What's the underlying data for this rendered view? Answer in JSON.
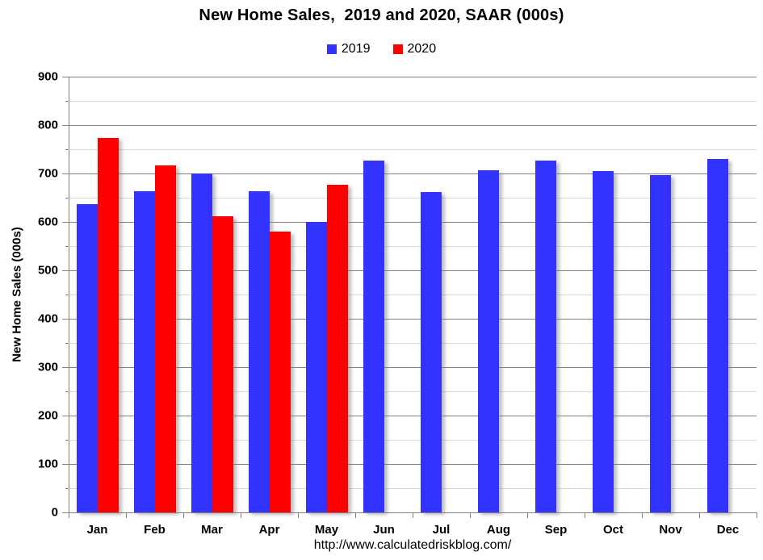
{
  "title": "New Home Sales,  2019 and 2020, SAAR (000s)",
  "legend": {
    "items": [
      {
        "label": "2019",
        "color": "#3333FF"
      },
      {
        "label": "2020",
        "color": "#FF0000"
      }
    ]
  },
  "footer": {
    "url": "http://www.calculatedriskblog.com/"
  },
  "colors": {
    "bar_2019": "#3333FF",
    "bar_2020": "#FF0000",
    "major_gridline": "#808080",
    "minor_gridline": "#D9D9D9",
    "axis": "#808080",
    "text": "#000000"
  },
  "chart_data": {
    "type": "bar",
    "title": "New Home Sales,  2019 and 2020, SAAR (000s)",
    "xlabel": "",
    "ylabel": "New Home Sales (000s)",
    "ylim": [
      0,
      900
    ],
    "ytick_step": 100,
    "minor_grid_step": 50,
    "grid": true,
    "legend_position": "top-center",
    "categories": [
      "Jan",
      "Feb",
      "Mar",
      "Apr",
      "May",
      "Jun",
      "Jul",
      "Aug",
      "Sep",
      "Oct",
      "Nov",
      "Dec"
    ],
    "series": [
      {
        "name": "2019",
        "color": "#3333FF",
        "values": [
          636,
          663,
          700,
          663,
          600,
          726,
          661,
          706,
          726,
          705,
          696,
          730
        ]
      },
      {
        "name": "2020",
        "color": "#FF0000",
        "values": [
          774,
          716,
          611,
          580,
          676,
          null,
          null,
          null,
          null,
          null,
          null,
          null
        ]
      }
    ]
  }
}
